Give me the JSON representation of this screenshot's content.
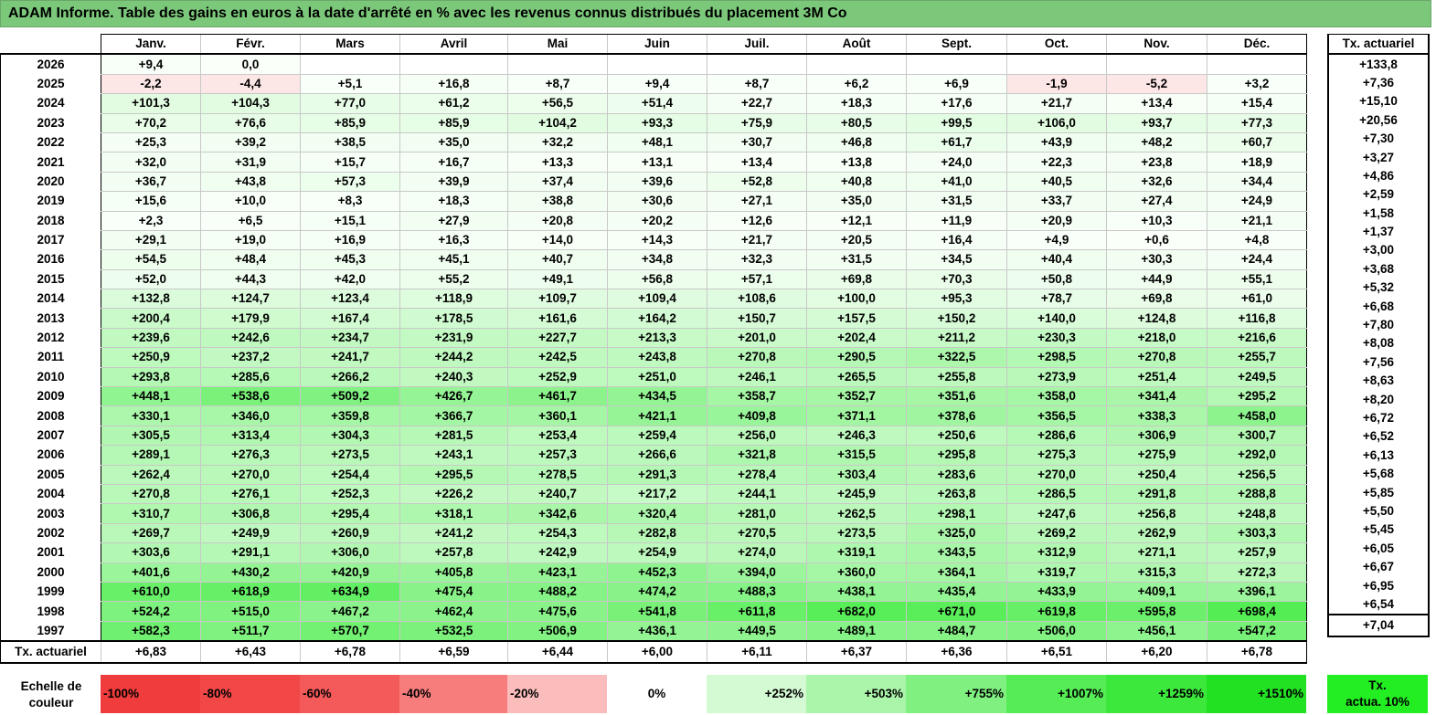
{
  "title": "ADAM Informe. Table des gains en euros à la date d'arrêté en % avec les revenus connus distribués du placement 3M Co",
  "months": [
    "Janv.",
    "Févr.",
    "Mars",
    "Avril",
    "Mai",
    "Juin",
    "Juil.",
    "Août",
    "Sept.",
    "Oct.",
    "Nov.",
    "Déc."
  ],
  "side_header": "Tx. actuariel",
  "rows": [
    {
      "year": "2026",
      "values": [
        "+9,4",
        "0,0",
        "",
        "",
        "",
        "",
        "",
        "",
        "",
        "",
        "",
        ""
      ],
      "rate": "+133,8"
    },
    {
      "year": "2025",
      "values": [
        "-2,2",
        "-4,4",
        "+5,1",
        "+16,8",
        "+8,7",
        "+9,4",
        "+8,7",
        "+6,2",
        "+6,9",
        "-1,9",
        "-5,2",
        "+3,2"
      ],
      "rate": "+7,36"
    },
    {
      "year": "2024",
      "values": [
        "+101,3",
        "+104,3",
        "+77,0",
        "+61,2",
        "+56,5",
        "+51,4",
        "+22,7",
        "+18,3",
        "+17,6",
        "+21,7",
        "+13,4",
        "+15,4"
      ],
      "rate": "+15,10"
    },
    {
      "year": "2023",
      "values": [
        "+70,2",
        "+76,6",
        "+85,9",
        "+85,9",
        "+104,2",
        "+93,3",
        "+75,9",
        "+80,5",
        "+99,5",
        "+106,0",
        "+93,7",
        "+77,3"
      ],
      "rate": "+20,56"
    },
    {
      "year": "2022",
      "values": [
        "+25,3",
        "+39,2",
        "+38,5",
        "+35,0",
        "+32,2",
        "+48,1",
        "+30,7",
        "+46,8",
        "+61,7",
        "+43,9",
        "+48,2",
        "+60,7"
      ],
      "rate": "+7,30"
    },
    {
      "year": "2021",
      "values": [
        "+32,0",
        "+31,9",
        "+15,7",
        "+16,7",
        "+13,3",
        "+13,1",
        "+13,4",
        "+13,8",
        "+24,0",
        "+22,3",
        "+23,8",
        "+18,9"
      ],
      "rate": "+3,27"
    },
    {
      "year": "2020",
      "values": [
        "+36,7",
        "+43,8",
        "+57,3",
        "+39,9",
        "+37,4",
        "+39,6",
        "+52,8",
        "+40,8",
        "+41,0",
        "+40,5",
        "+32,6",
        "+34,4"
      ],
      "rate": "+4,86"
    },
    {
      "year": "2019",
      "values": [
        "+15,6",
        "+10,0",
        "+8,3",
        "+18,3",
        "+38,8",
        "+30,6",
        "+27,1",
        "+35,0",
        "+31,5",
        "+33,7",
        "+27,4",
        "+24,9"
      ],
      "rate": "+2,59"
    },
    {
      "year": "2018",
      "values": [
        "+2,3",
        "+6,5",
        "+15,1",
        "+27,9",
        "+20,8",
        "+20,2",
        "+12,6",
        "+12,1",
        "+11,9",
        "+20,9",
        "+10,3",
        "+21,1"
      ],
      "rate": "+1,58"
    },
    {
      "year": "2017",
      "values": [
        "+29,1",
        "+19,0",
        "+16,9",
        "+16,3",
        "+14,0",
        "+14,3",
        "+21,7",
        "+20,5",
        "+16,4",
        "+4,9",
        "+0,6",
        "+4,8"
      ],
      "rate": "+1,37"
    },
    {
      "year": "2016",
      "values": [
        "+54,5",
        "+48,4",
        "+45,3",
        "+45,1",
        "+40,7",
        "+34,8",
        "+32,3",
        "+31,5",
        "+34,5",
        "+40,4",
        "+30,3",
        "+24,4"
      ],
      "rate": "+3,00"
    },
    {
      "year": "2015",
      "values": [
        "+52,0",
        "+44,3",
        "+42,0",
        "+55,2",
        "+49,1",
        "+56,8",
        "+57,1",
        "+69,8",
        "+70,3",
        "+50,8",
        "+44,9",
        "+55,1"
      ],
      "rate": "+3,68"
    },
    {
      "year": "2014",
      "values": [
        "+132,8",
        "+124,7",
        "+123,4",
        "+118,9",
        "+109,7",
        "+109,4",
        "+108,6",
        "+100,0",
        "+95,3",
        "+78,7",
        "+69,8",
        "+61,0"
      ],
      "rate": "+5,32"
    },
    {
      "year": "2013",
      "values": [
        "+200,4",
        "+179,9",
        "+167,4",
        "+178,5",
        "+161,6",
        "+164,2",
        "+150,7",
        "+157,5",
        "+150,2",
        "+140,0",
        "+124,8",
        "+116,8"
      ],
      "rate": "+6,68"
    },
    {
      "year": "2012",
      "values": [
        "+239,6",
        "+242,6",
        "+234,7",
        "+231,9",
        "+227,7",
        "+213,3",
        "+201,0",
        "+202,4",
        "+211,2",
        "+230,3",
        "+218,0",
        "+216,6"
      ],
      "rate": "+7,80"
    },
    {
      "year": "2011",
      "values": [
        "+250,9",
        "+237,2",
        "+241,7",
        "+244,2",
        "+242,5",
        "+243,8",
        "+270,8",
        "+290,5",
        "+322,5",
        "+298,5",
        "+270,8",
        "+255,7"
      ],
      "rate": "+8,08"
    },
    {
      "year": "2010",
      "values": [
        "+293,8",
        "+285,6",
        "+266,2",
        "+240,3",
        "+252,9",
        "+251,0",
        "+246,1",
        "+265,5",
        "+255,8",
        "+273,9",
        "+251,4",
        "+249,5"
      ],
      "rate": "+7,56"
    },
    {
      "year": "2009",
      "values": [
        "+448,1",
        "+538,6",
        "+509,2",
        "+426,7",
        "+461,7",
        "+434,5",
        "+358,7",
        "+352,7",
        "+351,6",
        "+358,0",
        "+341,4",
        "+295,2"
      ],
      "rate": "+8,63"
    },
    {
      "year": "2008",
      "values": [
        "+330,1",
        "+346,0",
        "+359,8",
        "+366,7",
        "+360,1",
        "+421,1",
        "+409,8",
        "+371,1",
        "+378,6",
        "+356,5",
        "+338,3",
        "+458,0"
      ],
      "rate": "+8,20"
    },
    {
      "year": "2007",
      "values": [
        "+305,5",
        "+313,4",
        "+304,3",
        "+281,5",
        "+253,4",
        "+259,4",
        "+256,0",
        "+246,3",
        "+250,6",
        "+286,6",
        "+306,9",
        "+300,7"
      ],
      "rate": "+6,72"
    },
    {
      "year": "2006",
      "values": [
        "+289,1",
        "+276,3",
        "+273,5",
        "+243,1",
        "+257,3",
        "+266,6",
        "+321,8",
        "+315,5",
        "+295,8",
        "+275,3",
        "+275,9",
        "+292,0"
      ],
      "rate": "+6,52"
    },
    {
      "year": "2005",
      "values": [
        "+262,4",
        "+270,0",
        "+254,4",
        "+295,5",
        "+278,5",
        "+291,3",
        "+278,4",
        "+303,4",
        "+283,6",
        "+270,0",
        "+250,4",
        "+256,5"
      ],
      "rate": "+6,13"
    },
    {
      "year": "2004",
      "values": [
        "+270,8",
        "+276,1",
        "+252,3",
        "+226,2",
        "+240,7",
        "+217,2",
        "+244,1",
        "+245,9",
        "+263,8",
        "+286,5",
        "+291,8",
        "+288,8"
      ],
      "rate": "+5,68"
    },
    {
      "year": "2003",
      "values": [
        "+310,7",
        "+306,8",
        "+295,4",
        "+318,1",
        "+342,6",
        "+320,4",
        "+281,0",
        "+262,5",
        "+298,1",
        "+247,6",
        "+256,8",
        "+248,8"
      ],
      "rate": "+5,85"
    },
    {
      "year": "2002",
      "values": [
        "+269,7",
        "+249,9",
        "+260,9",
        "+241,2",
        "+254,3",
        "+282,8",
        "+270,5",
        "+273,5",
        "+325,0",
        "+269,2",
        "+262,9",
        "+303,3"
      ],
      "rate": "+5,50"
    },
    {
      "year": "2001",
      "values": [
        "+303,6",
        "+291,1",
        "+306,0",
        "+257,8",
        "+242,9",
        "+254,9",
        "+274,0",
        "+319,1",
        "+343,5",
        "+312,9",
        "+271,1",
        "+257,9"
      ],
      "rate": "+5,45"
    },
    {
      "year": "2000",
      "values": [
        "+401,6",
        "+430,2",
        "+420,9",
        "+405,8",
        "+423,1",
        "+452,3",
        "+394,0",
        "+360,0",
        "+364,1",
        "+319,7",
        "+315,3",
        "+272,3"
      ],
      "rate": "+6,05"
    },
    {
      "year": "1999",
      "values": [
        "+610,0",
        "+618,9",
        "+634,9",
        "+475,4",
        "+488,2",
        "+474,2",
        "+488,3",
        "+438,1",
        "+435,4",
        "+433,9",
        "+409,1",
        "+396,1"
      ],
      "rate": "+6,67"
    },
    {
      "year": "1998",
      "values": [
        "+524,2",
        "+515,0",
        "+467,2",
        "+462,4",
        "+475,6",
        "+541,8",
        "+611,8",
        "+682,0",
        "+671,0",
        "+619,8",
        "+595,8",
        "+698,4"
      ],
      "rate": "+6,95"
    },
    {
      "year": "1997",
      "values": [
        "+582,3",
        "+511,7",
        "+570,7",
        "+532,5",
        "+506,9",
        "+436,1",
        "+449,5",
        "+489,1",
        "+484,7",
        "+506,0",
        "+456,1",
        "+547,2"
      ],
      "rate": "+6,54"
    }
  ],
  "footer": {
    "label": "Tx. actuariel",
    "values": [
      "+6,83",
      "+6,43",
      "+6,78",
      "+6,59",
      "+6,44",
      "+6,00",
      "+6,11",
      "+6,37",
      "+6,36",
      "+6,51",
      "+6,20",
      "+6,78"
    ],
    "rate": "+7,04"
  },
  "legend": {
    "label_line1": "Echelle de",
    "label_line2": "couleur",
    "steps": [
      {
        "label": "-100%",
        "color": "#f03c3c",
        "align": "left"
      },
      {
        "label": "-80%",
        "color": "#f24747",
        "align": "left"
      },
      {
        "label": "-60%",
        "color": "#f55a5a",
        "align": "left"
      },
      {
        "label": "-40%",
        "color": "#f77c7c",
        "align": "left"
      },
      {
        "label": "-20%",
        "color": "#fbbcbc",
        "align": "left"
      },
      {
        "label": "0%",
        "color": "#ffffff",
        "align": "center"
      },
      {
        "label": "+252%",
        "color": "#d4fad4",
        "align": "right"
      },
      {
        "label": "+503%",
        "color": "#aaf5aa",
        "align": "right"
      },
      {
        "label": "+755%",
        "color": "#80f080",
        "align": "right"
      },
      {
        "label": "+1007%",
        "color": "#55ec55",
        "align": "right"
      },
      {
        "label": "+1259%",
        "color": "#3de83d",
        "align": "right"
      },
      {
        "label": "+1510%",
        "color": "#22e022",
        "align": "right"
      }
    ],
    "side_line1": "Tx.",
    "side_line2": "actua. 10%",
    "side_color": "#22ee22"
  },
  "colors": {
    "title_bar": "#7bc87a",
    "positive_base": "#ffffff",
    "positive_max": "#22e022",
    "negative_light": "#fde6e6"
  }
}
